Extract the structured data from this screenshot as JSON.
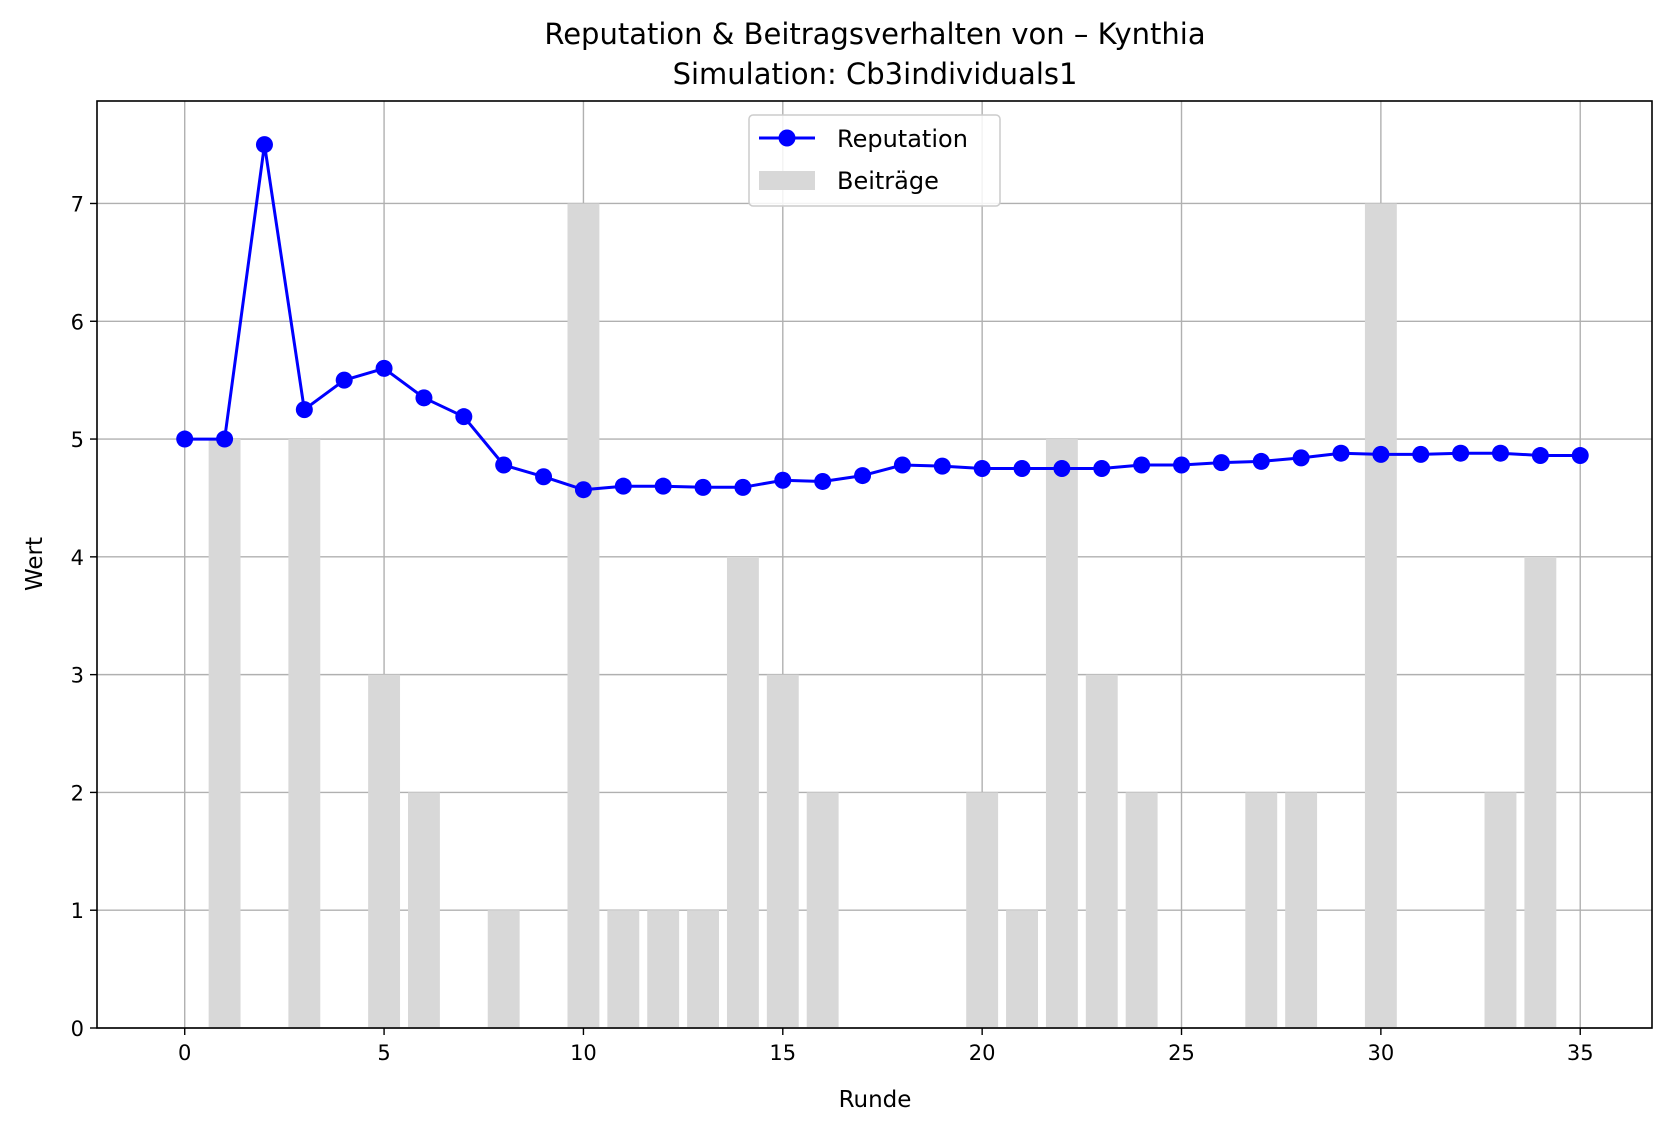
{
  "chart_data": {
    "type": "bar+line",
    "title": "Reputation & Beitragsverhalten von – Kynthia",
    "subtitle": "Simulation: Cb3individuals1",
    "xlabel": "Runde",
    "ylabel": "Wert",
    "xlim": [
      -2.2,
      36.8
    ],
    "ylim": [
      0,
      7.87
    ],
    "xticks": [
      0,
      5,
      10,
      15,
      20,
      25,
      30,
      35
    ],
    "yticks": [
      0,
      1,
      2,
      3,
      4,
      5,
      6,
      7
    ],
    "grid": true,
    "legend_position": "top-center",
    "colors": {
      "reputation": "#0000ff",
      "beitraege": "#d8d8d8",
      "grid": "#b0b0b0"
    },
    "series": [
      {
        "name": "Reputation",
        "kind": "line",
        "x": [
          0,
          1,
          2,
          3,
          4,
          5,
          6,
          7,
          8,
          9,
          10,
          11,
          12,
          13,
          14,
          15,
          16,
          17,
          18,
          19,
          20,
          21,
          22,
          23,
          24,
          25,
          26,
          27,
          28,
          29,
          30,
          31,
          32,
          33,
          34,
          35
        ],
        "values": [
          5.0,
          5.0,
          7.5,
          5.25,
          5.5,
          5.6,
          5.35,
          5.19,
          4.78,
          4.68,
          4.57,
          4.6,
          4.6,
          4.59,
          4.59,
          4.65,
          4.64,
          4.69,
          4.78,
          4.77,
          4.75,
          4.75,
          4.75,
          4.75,
          4.78,
          4.78,
          4.8,
          4.81,
          4.84,
          4.88,
          4.87,
          4.87,
          4.88,
          4.88,
          4.86,
          4.86
        ]
      },
      {
        "name": "Beiträge",
        "kind": "bar",
        "x": [
          0,
          1,
          2,
          3,
          4,
          5,
          6,
          7,
          8,
          9,
          10,
          11,
          12,
          13,
          14,
          15,
          16,
          17,
          18,
          19,
          20,
          21,
          22,
          23,
          24,
          25,
          26,
          27,
          28,
          29,
          30,
          31,
          32,
          33,
          34,
          35
        ],
        "values": [
          0,
          5,
          0,
          5,
          0,
          3,
          2,
          0,
          1,
          0,
          7,
          1,
          1,
          1,
          4,
          3,
          2,
          0,
          0,
          0,
          2,
          1,
          5,
          3,
          2,
          0,
          0,
          2,
          2,
          0,
          7,
          0,
          0,
          2,
          4,
          0
        ]
      }
    ]
  }
}
